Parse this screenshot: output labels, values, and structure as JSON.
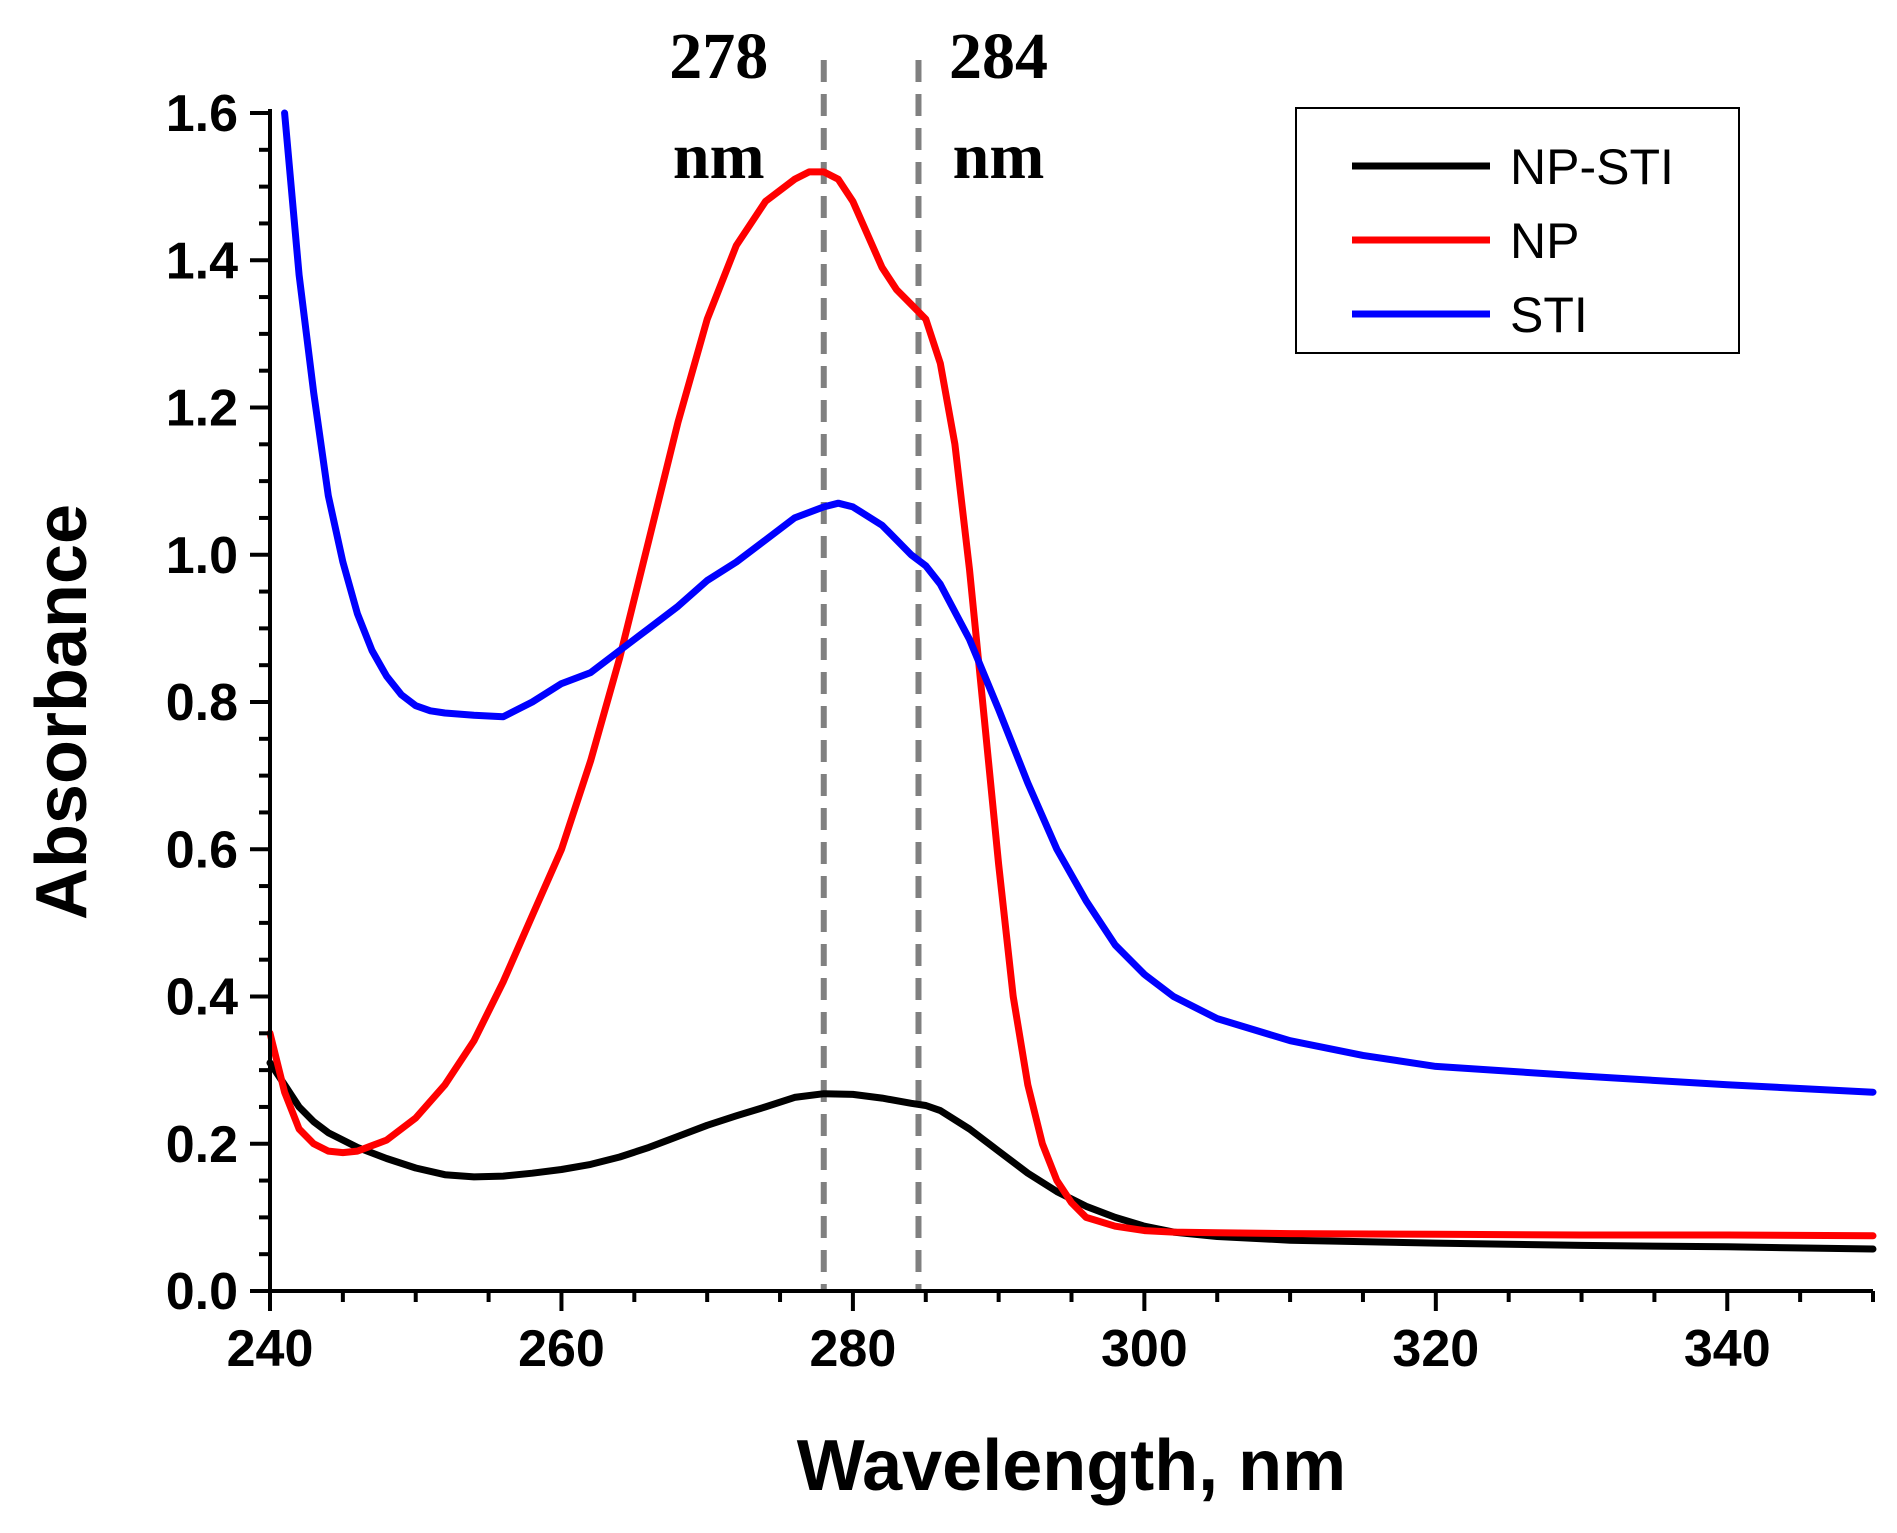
{
  "chart_data": {
    "type": "line",
    "title": "",
    "xlabel": "Wavelength, nm",
    "ylabel": "Absorbance",
    "xlim": [
      240,
      350
    ],
    "ylim": [
      0.0,
      1.6
    ],
    "xticks": [
      240,
      260,
      280,
      300,
      320,
      340
    ],
    "xtick_labels": [
      "240",
      "260",
      "280",
      "300",
      "320",
      "340"
    ],
    "yticks": [
      0.0,
      0.2,
      0.4,
      0.6,
      0.8,
      1.0,
      1.2,
      1.4,
      1.6
    ],
    "ytick_labels": [
      "0.0",
      "0.2",
      "0.4",
      "0.6",
      "0.8",
      "1.0",
      "1.2",
      "1.4",
      "1.6"
    ],
    "grid": false,
    "legend_position": "top-right",
    "series": [
      {
        "name": "NP-STI",
        "color": "#000000",
        "x": [
          240,
          241,
          242,
          243,
          244,
          246,
          248,
          250,
          252,
          254,
          256,
          258,
          260,
          262,
          264,
          266,
          268,
          270,
          272,
          274,
          276,
          278,
          280,
          282,
          284,
          285,
          286,
          288,
          290,
          292,
          294,
          296,
          298,
          300,
          302,
          305,
          310,
          320,
          330,
          340,
          350
        ],
        "y": [
          0.31,
          0.28,
          0.25,
          0.23,
          0.215,
          0.195,
          0.18,
          0.167,
          0.158,
          0.155,
          0.156,
          0.16,
          0.165,
          0.172,
          0.182,
          0.195,
          0.21,
          0.225,
          0.238,
          0.25,
          0.263,
          0.268,
          0.267,
          0.262,
          0.255,
          0.252,
          0.245,
          0.22,
          0.19,
          0.16,
          0.135,
          0.115,
          0.1,
          0.088,
          0.08,
          0.074,
          0.069,
          0.065,
          0.062,
          0.06,
          0.057
        ]
      },
      {
        "name": "NP",
        "color": "#ff0000",
        "x": [
          240,
          241,
          242,
          243,
          244,
          245,
          246,
          248,
          250,
          252,
          254,
          256,
          258,
          260,
          262,
          264,
          266,
          268,
          270,
          272,
          274,
          276,
          277,
          278,
          279,
          280,
          282,
          283,
          284,
          285,
          286,
          287,
          288,
          289,
          290,
          291,
          292,
          293,
          294,
          295,
          296,
          298,
          300,
          302,
          305,
          310,
          320,
          330,
          340,
          350
        ],
        "y": [
          0.35,
          0.27,
          0.22,
          0.2,
          0.19,
          0.188,
          0.19,
          0.205,
          0.235,
          0.28,
          0.34,
          0.42,
          0.51,
          0.6,
          0.72,
          0.86,
          1.02,
          1.18,
          1.32,
          1.42,
          1.48,
          1.51,
          1.52,
          1.52,
          1.51,
          1.48,
          1.39,
          1.36,
          1.34,
          1.32,
          1.26,
          1.15,
          0.98,
          0.78,
          0.58,
          0.4,
          0.28,
          0.2,
          0.15,
          0.12,
          0.1,
          0.088,
          0.082,
          0.08,
          0.079,
          0.078,
          0.077,
          0.076,
          0.076,
          0.075
        ]
      },
      {
        "name": "STI",
        "color": "#0000ff",
        "x": [
          241,
          242,
          243,
          244,
          245,
          246,
          247,
          248,
          249,
          250,
          251,
          252,
          254,
          256,
          257,
          258,
          260,
          262,
          264,
          266,
          268,
          270,
          272,
          274,
          276,
          278,
          279,
          280,
          282,
          284,
          285,
          286,
          288,
          290,
          292,
          294,
          296,
          298,
          300,
          302,
          305,
          310,
          315,
          320,
          330,
          340,
          350
        ],
        "y": [
          1.6,
          1.38,
          1.22,
          1.08,
          0.99,
          0.92,
          0.87,
          0.835,
          0.81,
          0.795,
          0.788,
          0.785,
          0.782,
          0.78,
          0.79,
          0.8,
          0.825,
          0.84,
          0.87,
          0.9,
          0.93,
          0.965,
          0.99,
          1.02,
          1.05,
          1.065,
          1.07,
          1.065,
          1.04,
          1.0,
          0.985,
          0.96,
          0.885,
          0.79,
          0.69,
          0.6,
          0.53,
          0.47,
          0.43,
          0.4,
          0.37,
          0.34,
          0.32,
          0.305,
          0.292,
          0.28,
          0.27
        ]
      }
    ],
    "reference_lines": [
      {
        "x": 278,
        "value_label": "278",
        "unit_label": "nm",
        "color": "#808080",
        "style": "dashed"
      },
      {
        "x": 284.5,
        "value_label": "284",
        "unit_label": "nm",
        "color": "#808080",
        "style": "dashed"
      }
    ]
  }
}
